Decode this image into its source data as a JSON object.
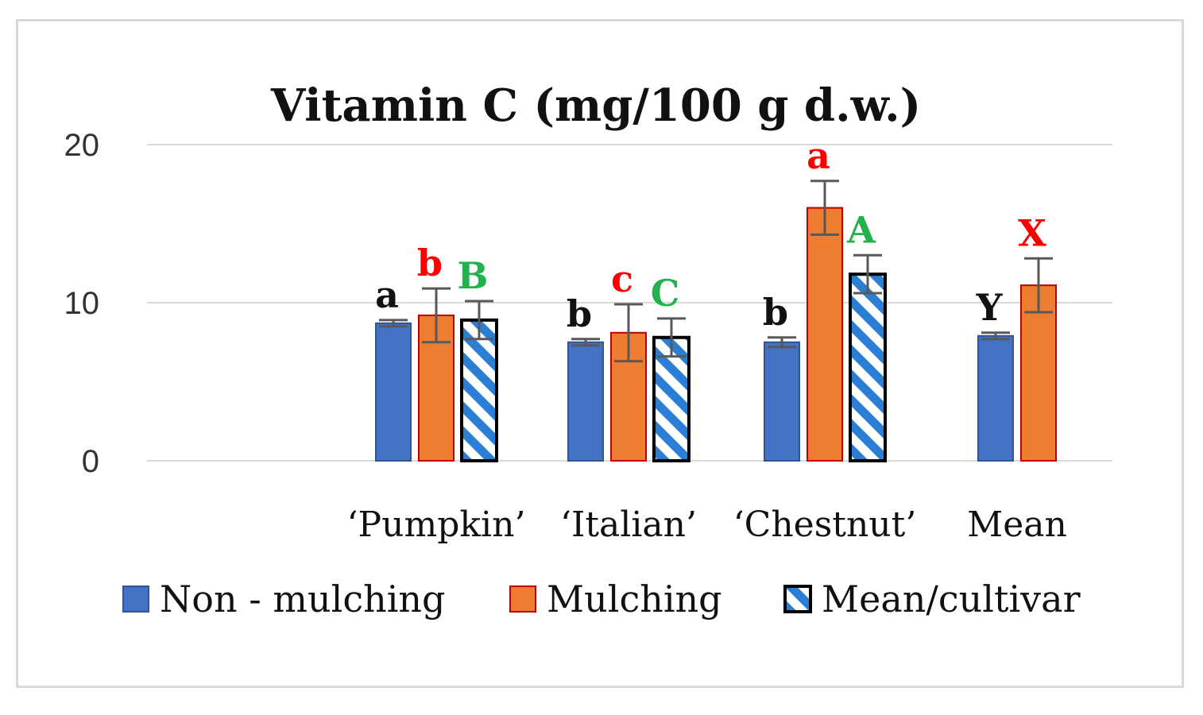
{
  "chart_data": {
    "type": "bar",
    "title": "Vitamin C (mg/100 g d.w.)",
    "xlabel": "",
    "ylabel": "",
    "ylim": [
      0,
      20
    ],
    "yticks": [
      "0",
      "10",
      "20"
    ],
    "grid": true,
    "legend_position": "bottom",
    "categories": [
      "‘Pumpkin’",
      "‘Italian’",
      "‘Chestnut’",
      "Mean"
    ],
    "series": [
      {
        "name": "Non - mulching",
        "color": "#4472c4",
        "edge": "#2f5597",
        "values": [
          8.7,
          7.5,
          7.5,
          7.9
        ],
        "errors": [
          0.2,
          0.2,
          0.3,
          0.2
        ],
        "labels": [
          "a",
          "b",
          "b",
          "Y"
        ],
        "label_color": "#111111"
      },
      {
        "name": "Mulching",
        "color": "#ed7d31",
        "edge": "#c00000",
        "values": [
          9.2,
          8.1,
          16.0,
          11.1
        ],
        "errors": [
          1.7,
          1.8,
          1.7,
          1.7
        ],
        "labels": [
          "b",
          "c",
          "a",
          "X"
        ],
        "label_color": "#ff0000"
      },
      {
        "name": "Mean/cultivar",
        "color": "#2a7fd4",
        "edge": "#000000",
        "pattern": "diagonal-stripes",
        "values": [
          8.9,
          7.8,
          11.8,
          null
        ],
        "errors": [
          1.2,
          1.2,
          1.2,
          null
        ],
        "labels": [
          "B",
          "C",
          "A",
          ""
        ],
        "label_color": "#22b14c"
      }
    ]
  }
}
